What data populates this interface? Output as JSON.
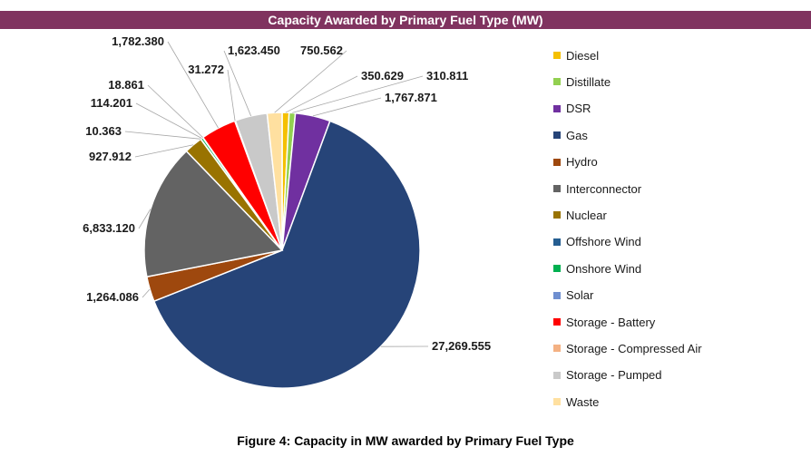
{
  "chart_data": {
    "type": "pie",
    "title": "Capacity Awarded by Primary Fuel Type (MW)",
    "caption": "Figure 4: Capacity in MW awarded by Primary Fuel Type",
    "legend_position": "right",
    "slices": [
      {
        "name": "Diesel",
        "value": 350.629,
        "label": "350.629",
        "color": "#f5c000"
      },
      {
        "name": "Distillate",
        "value": 310.811,
        "label": "310.811",
        "color": "#92d050"
      },
      {
        "name": "DSR",
        "value": 1767.871,
        "label": "1,767.871",
        "color": "#7030a0"
      },
      {
        "name": "Gas",
        "value": 27269.555,
        "label": "27,269.555",
        "color": "#264478"
      },
      {
        "name": "Hydro",
        "value": 1264.086,
        "label": "1,264.086",
        "color": "#9e480e"
      },
      {
        "name": "Interconnector",
        "value": 6833.12,
        "label": "6,833.120",
        "color": "#636363"
      },
      {
        "name": "Nuclear",
        "value": 927.912,
        "label": "927.912",
        "color": "#997300"
      },
      {
        "name": "Offshore Wind",
        "value": 10.363,
        "label": "10.363",
        "color": "#255e91"
      },
      {
        "name": "Onshore Wind",
        "value": 114.201,
        "label": "114.201",
        "color": "#00b050"
      },
      {
        "name": "Solar",
        "value": 18.861,
        "label": "18.861",
        "color": "#6f8fd0"
      },
      {
        "name": "Storage - Battery",
        "value": 1782.38,
        "label": "1,782.380",
        "color": "#ff0000"
      },
      {
        "name": "Storage - Compressed Air",
        "value": 31.272,
        "label": "31.272",
        "color": "#f4b183"
      },
      {
        "name": "Storage - Pumped",
        "value": 1623.45,
        "label": "1,623.450",
        "color": "#c9c9c9"
      },
      {
        "name": "Waste",
        "value": 750.562,
        "label": "750.562",
        "color": "#ffe0a0"
      }
    ]
  }
}
